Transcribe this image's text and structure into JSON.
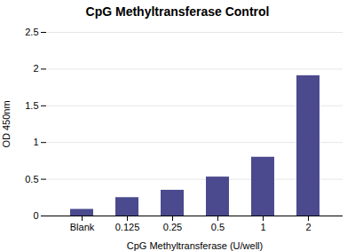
{
  "chart_data": {
    "type": "bar",
    "title": "CpG Methyltransferase Control",
    "xlabel": "CpG Methyltransferase (U/well)",
    "ylabel": "OD 450nm",
    "categories": [
      "Blank",
      "0.125",
      "0.25",
      "0.5",
      "1",
      "2"
    ],
    "values": [
      0.09,
      0.25,
      0.35,
      0.53,
      0.8,
      1.91
    ],
    "color": "#4B4A8F",
    "ylim": [
      0,
      2.5
    ],
    "yticks": [
      0,
      0.5,
      1,
      1.5,
      2,
      2.5
    ],
    "grid": true
  }
}
